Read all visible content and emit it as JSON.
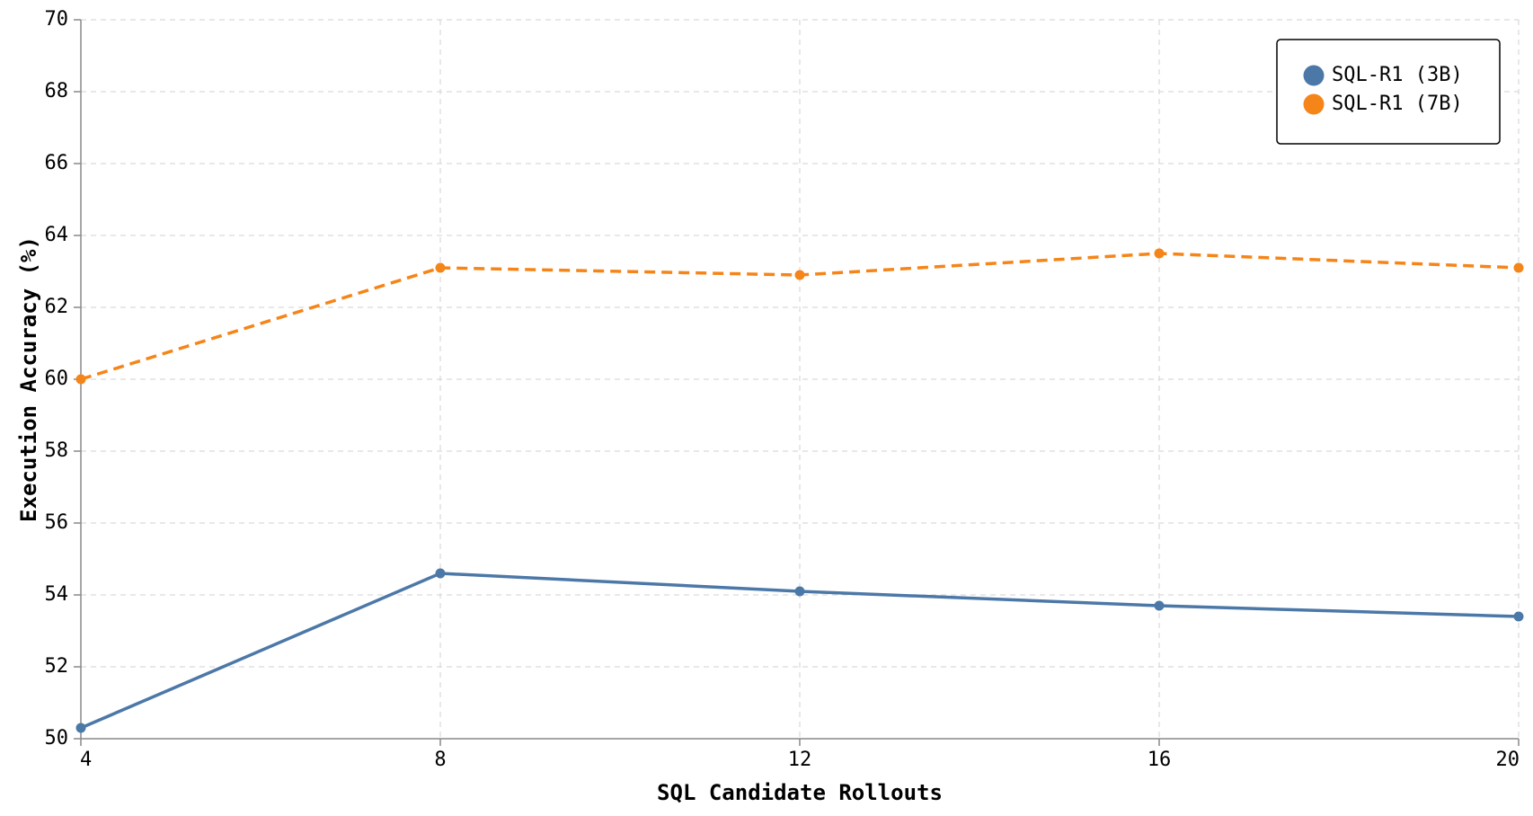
{
  "chart_data": {
    "type": "line",
    "title": "",
    "xlabel": "SQL Candidate Rollouts",
    "ylabel": "Execution Accuracy (%)",
    "x": [
      4,
      8,
      12,
      16,
      20
    ],
    "xlim": [
      4,
      20
    ],
    "ylim": [
      50,
      70
    ],
    "x_ticks": [
      4,
      8,
      12,
      16,
      20
    ],
    "y_ticks": [
      50,
      52,
      54,
      56,
      58,
      60,
      62,
      64,
      66,
      68,
      70
    ],
    "grid": true,
    "legend_position": "top-right",
    "series": [
      {
        "name": "SQL-R1 (3B)",
        "color": "#4c78a8",
        "line_style": "solid",
        "values": [
          50.3,
          54.6,
          54.1,
          53.7,
          53.4
        ]
      },
      {
        "name": "SQL-R1 (7B)",
        "color": "#f58518",
        "line_style": "dashed",
        "values": [
          60.0,
          63.1,
          62.9,
          63.5,
          63.1
        ]
      }
    ]
  }
}
